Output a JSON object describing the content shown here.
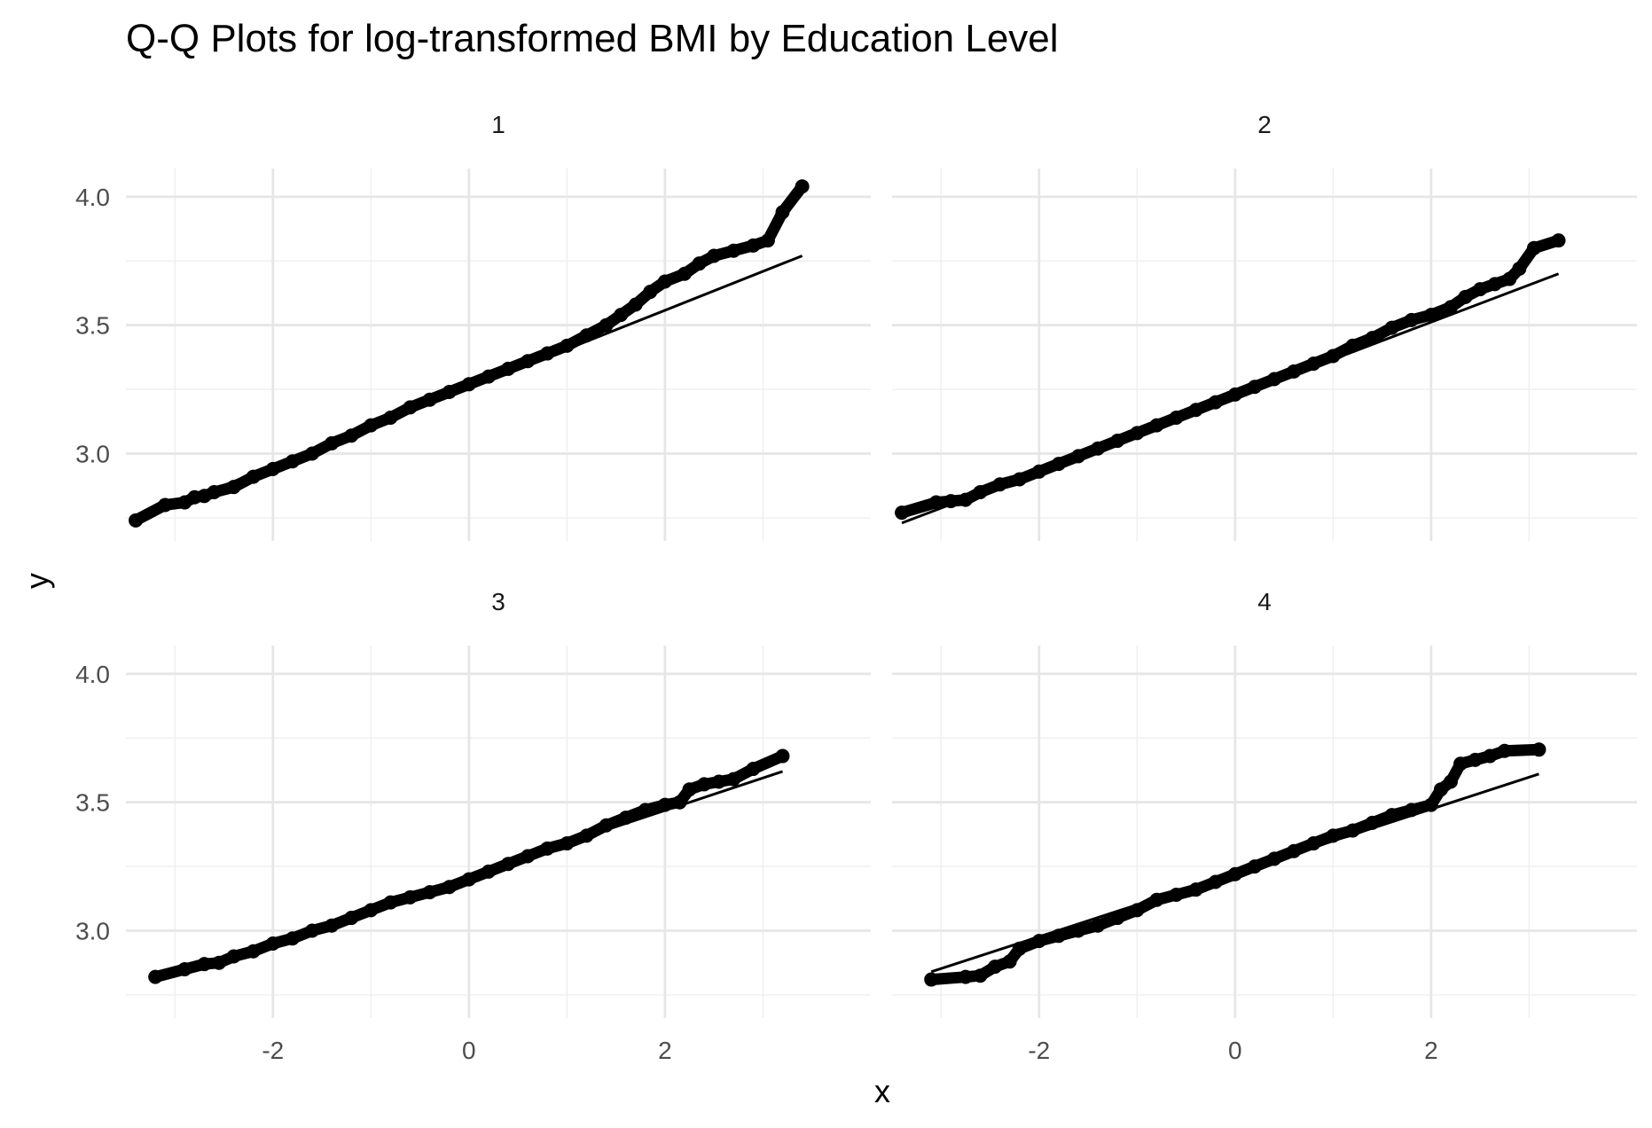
{
  "chart_data": {
    "type": "scatter",
    "title": "Q-Q Plots for log-transformed BMI by Education Level",
    "xlabel": "x",
    "ylabel": "y",
    "xlim": [
      -3.5,
      4.1
    ],
    "ylim": [
      2.66,
      4.11
    ],
    "x_ticks": [
      -2,
      0,
      2
    ],
    "x_tick_labels": [
      "-2",
      "0",
      "2"
    ],
    "y_ticks": [
      3.0,
      3.5,
      4.0
    ],
    "y_tick_labels": [
      "3.0",
      "3.5",
      "4.0"
    ],
    "grid": true,
    "legend": "none",
    "colors": {
      "points": "#000000",
      "line": "#000000",
      "grid_major": "#e6e6e6",
      "grid_minor": "#efefef"
    },
    "panels": [
      {
        "label": "1",
        "line": {
          "x": [
            -3.4,
            3.4
          ],
          "y": [
            2.74,
            3.77
          ]
        },
        "points": [
          [
            -3.4,
            2.74
          ],
          [
            -3.1,
            2.8
          ],
          [
            -2.9,
            2.81
          ],
          [
            -2.8,
            2.83
          ],
          [
            -2.7,
            2.835
          ],
          [
            -2.6,
            2.85
          ],
          [
            -2.4,
            2.87
          ],
          [
            -2.2,
            2.91
          ],
          [
            -2.0,
            2.94
          ],
          [
            -1.8,
            2.97
          ],
          [
            -1.6,
            3.0
          ],
          [
            -1.4,
            3.04
          ],
          [
            -1.2,
            3.07
          ],
          [
            -1.0,
            3.11
          ],
          [
            -0.8,
            3.14
          ],
          [
            -0.6,
            3.18
          ],
          [
            -0.4,
            3.21
          ],
          [
            -0.2,
            3.24
          ],
          [
            0.0,
            3.27
          ],
          [
            0.2,
            3.3
          ],
          [
            0.4,
            3.33
          ],
          [
            0.6,
            3.36
          ],
          [
            0.8,
            3.39
          ],
          [
            1.0,
            3.42
          ],
          [
            1.2,
            3.46
          ],
          [
            1.4,
            3.5
          ],
          [
            1.55,
            3.54
          ],
          [
            1.7,
            3.58
          ],
          [
            1.85,
            3.63
          ],
          [
            2.0,
            3.67
          ],
          [
            2.2,
            3.7
          ],
          [
            2.35,
            3.74
          ],
          [
            2.5,
            3.77
          ],
          [
            2.7,
            3.79
          ],
          [
            2.9,
            3.81
          ],
          [
            3.05,
            3.83
          ],
          [
            3.2,
            3.94
          ],
          [
            3.4,
            4.04
          ]
        ]
      },
      {
        "label": "2",
        "line": {
          "x": [
            -3.4,
            3.3
          ],
          "y": [
            2.73,
            3.7
          ]
        },
        "points": [
          [
            -3.4,
            2.77
          ],
          [
            -3.05,
            2.81
          ],
          [
            -2.9,
            2.815
          ],
          [
            -2.75,
            2.82
          ],
          [
            -2.6,
            2.85
          ],
          [
            -2.4,
            2.88
          ],
          [
            -2.2,
            2.9
          ],
          [
            -2.0,
            2.93
          ],
          [
            -1.8,
            2.96
          ],
          [
            -1.6,
            2.99
          ],
          [
            -1.4,
            3.02
          ],
          [
            -1.2,
            3.05
          ],
          [
            -1.0,
            3.08
          ],
          [
            -0.8,
            3.11
          ],
          [
            -0.6,
            3.14
          ],
          [
            -0.4,
            3.17
          ],
          [
            -0.2,
            3.2
          ],
          [
            0.0,
            3.23
          ],
          [
            0.2,
            3.26
          ],
          [
            0.4,
            3.29
          ],
          [
            0.6,
            3.32
          ],
          [
            0.8,
            3.35
          ],
          [
            1.0,
            3.38
          ],
          [
            1.2,
            3.42
          ],
          [
            1.4,
            3.45
          ],
          [
            1.6,
            3.49
          ],
          [
            1.8,
            3.52
          ],
          [
            2.0,
            3.54
          ],
          [
            2.2,
            3.57
          ],
          [
            2.35,
            3.61
          ],
          [
            2.5,
            3.64
          ],
          [
            2.65,
            3.66
          ],
          [
            2.8,
            3.68
          ],
          [
            2.9,
            3.72
          ],
          [
            3.05,
            3.8
          ],
          [
            3.3,
            3.83
          ]
        ]
      },
      {
        "label": "3",
        "line": {
          "x": [
            -3.2,
            3.2
          ],
          "y": [
            2.81,
            3.62
          ]
        },
        "points": [
          [
            -3.2,
            2.82
          ],
          [
            -2.9,
            2.85
          ],
          [
            -2.7,
            2.87
          ],
          [
            -2.55,
            2.875
          ],
          [
            -2.4,
            2.9
          ],
          [
            -2.2,
            2.92
          ],
          [
            -2.0,
            2.95
          ],
          [
            -1.8,
            2.97
          ],
          [
            -1.6,
            3.0
          ],
          [
            -1.4,
            3.02
          ],
          [
            -1.2,
            3.05
          ],
          [
            -1.0,
            3.08
          ],
          [
            -0.8,
            3.11
          ],
          [
            -0.6,
            3.13
          ],
          [
            -0.4,
            3.15
          ],
          [
            -0.2,
            3.17
          ],
          [
            0.0,
            3.2
          ],
          [
            0.2,
            3.23
          ],
          [
            0.4,
            3.26
          ],
          [
            0.6,
            3.29
          ],
          [
            0.8,
            3.32
          ],
          [
            1.0,
            3.34
          ],
          [
            1.2,
            3.37
          ],
          [
            1.4,
            3.41
          ],
          [
            1.6,
            3.44
          ],
          [
            1.8,
            3.47
          ],
          [
            2.0,
            3.49
          ],
          [
            2.15,
            3.5
          ],
          [
            2.25,
            3.55
          ],
          [
            2.4,
            3.57
          ],
          [
            2.55,
            3.58
          ],
          [
            2.7,
            3.59
          ],
          [
            2.9,
            3.63
          ],
          [
            3.2,
            3.68
          ]
        ]
      },
      {
        "label": "4",
        "line": {
          "x": [
            -3.1,
            3.1
          ],
          "y": [
            2.84,
            3.61
          ]
        },
        "points": [
          [
            -3.1,
            2.81
          ],
          [
            -2.75,
            2.82
          ],
          [
            -2.6,
            2.825
          ],
          [
            -2.45,
            2.86
          ],
          [
            -2.3,
            2.88
          ],
          [
            -2.2,
            2.93
          ],
          [
            -2.0,
            2.96
          ],
          [
            -1.8,
            2.98
          ],
          [
            -1.6,
            3.0
          ],
          [
            -1.4,
            3.02
          ],
          [
            -1.2,
            3.05
          ],
          [
            -1.0,
            3.08
          ],
          [
            -0.8,
            3.12
          ],
          [
            -0.6,
            3.14
          ],
          [
            -0.4,
            3.16
          ],
          [
            -0.2,
            3.19
          ],
          [
            0.0,
            3.22
          ],
          [
            0.2,
            3.25
          ],
          [
            0.4,
            3.28
          ],
          [
            0.6,
            3.31
          ],
          [
            0.8,
            3.34
          ],
          [
            1.0,
            3.37
          ],
          [
            1.2,
            3.39
          ],
          [
            1.4,
            3.42
          ],
          [
            1.6,
            3.45
          ],
          [
            1.8,
            3.47
          ],
          [
            2.0,
            3.49
          ],
          [
            2.1,
            3.55
          ],
          [
            2.2,
            3.58
          ],
          [
            2.3,
            3.65
          ],
          [
            2.45,
            3.665
          ],
          [
            2.6,
            3.68
          ],
          [
            2.75,
            3.7
          ],
          [
            3.1,
            3.705
          ]
        ]
      }
    ]
  }
}
